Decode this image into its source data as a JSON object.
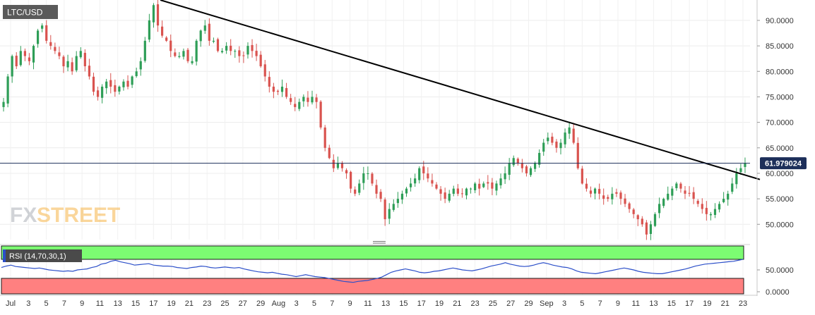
{
  "symbol_label": "LTC/USD",
  "watermark": {
    "fx": "FX",
    "street": "STREET"
  },
  "price_axis": {
    "ticks": [
      "90.0000",
      "85.0000",
      "80.0000",
      "75.0000",
      "70.0000",
      "65.0000",
      "60.0000",
      "55.0000",
      "50.0000"
    ],
    "current_price_label": "61.979024"
  },
  "rsi_panel": {
    "label": "RSI (14,70,30,1)",
    "ticks": [
      "50.0000",
      "0.0000"
    ]
  },
  "x_axis": {
    "labels": [
      "Jul",
      "3",
      "5",
      "7",
      "9",
      "11",
      "13",
      "15",
      "17",
      "19",
      "21",
      "23",
      "25",
      "27",
      "29",
      "Aug",
      "3",
      "5",
      "7",
      "9",
      "11",
      "13",
      "15",
      "17",
      "19",
      "21",
      "23",
      "25",
      "27",
      "29",
      "Sep",
      "3",
      "5",
      "7",
      "9",
      "11",
      "13",
      "15",
      "17",
      "19",
      "21",
      "23"
    ]
  },
  "colors": {
    "up": "#2e9e57",
    "down": "#d9534f",
    "trendline": "#000000",
    "price_line": "#1d2f5a",
    "rsi_line": "#2c4fc9",
    "rsi_overbought_zone": "#7cfc72",
    "rsi_oversold_zone": "#ff8080"
  },
  "chart_data": [
    {
      "type": "candlestick",
      "ylim": [
        47,
        94
      ],
      "current_price": 61.979024,
      "trendline": {
        "from": {
          "date": "Jul 18",
          "value": 94
        },
        "to": {
          "date": "Sep 24",
          "value": 61
        }
      },
      "closes": [
        74,
        79,
        83,
        81,
        84,
        83,
        82,
        85,
        88,
        89,
        86,
        85,
        84,
        83,
        81,
        82,
        80,
        83,
        84,
        81,
        79,
        76,
        75,
        77,
        78,
        77,
        76,
        77,
        78,
        77,
        79,
        80,
        82,
        86,
        90,
        93,
        89,
        87,
        86,
        84,
        83,
        83,
        84,
        82,
        82,
        86,
        88,
        89,
        86,
        86,
        84,
        84,
        85,
        84,
        84,
        83,
        83,
        85,
        84,
        83,
        81,
        79,
        77,
        76,
        76,
        77,
        75,
        74,
        73,
        74,
        75,
        74,
        75,
        74,
        69,
        65,
        63,
        61,
        62,
        61,
        60,
        57,
        56,
        58,
        60,
        60,
        58,
        56,
        55,
        51,
        53,
        54,
        55,
        56,
        57,
        58,
        59,
        61,
        60,
        59,
        58,
        57,
        56,
        55,
        56,
        57,
        56,
        56,
        57,
        57,
        58,
        57,
        58,
        58,
        57,
        58,
        59,
        60,
        62,
        63,
        62,
        61,
        60,
        61,
        62,
        64,
        66,
        67,
        66,
        65,
        66,
        68,
        69,
        66,
        61,
        58,
        57,
        56,
        57,
        56,
        55,
        55,
        56,
        56,
        55,
        54,
        53,
        52,
        51,
        50,
        48,
        50,
        52,
        54,
        55,
        56,
        57,
        58,
        57,
        56,
        56,
        55,
        54,
        53,
        52,
        52,
        53,
        54,
        55,
        56,
        58,
        60,
        61,
        62
      ],
      "dates_range": [
        "Jul 1",
        "Sep 24"
      ]
    },
    {
      "type": "line",
      "name": "RSI (14,70,30,1)",
      "ylim": [
        0,
        100
      ],
      "overbought": 70,
      "oversold": 30,
      "values": [
        55,
        58,
        60,
        57,
        56,
        55,
        54,
        53,
        54,
        52,
        50,
        49,
        48,
        47,
        48,
        47,
        50,
        51,
        52,
        55,
        57,
        62,
        64,
        68,
        70,
        67,
        65,
        63,
        60,
        61,
        62,
        63,
        60,
        59,
        58,
        58,
        57,
        55,
        54,
        53,
        55,
        56,
        58,
        57,
        55,
        54,
        55,
        56,
        55,
        54,
        55,
        52,
        50,
        48,
        46,
        45,
        44,
        45,
        43,
        41,
        40,
        38,
        36,
        38,
        40,
        38,
        36,
        35,
        34,
        32,
        30,
        28,
        26,
        25,
        24,
        26,
        27,
        28,
        30,
        32,
        35,
        40,
        45,
        48,
        50,
        52,
        50,
        48,
        45,
        44,
        45,
        47,
        48,
        50,
        52,
        54,
        52,
        50,
        49,
        48,
        50,
        52,
        55,
        58,
        60,
        62,
        65,
        62,
        60,
        58,
        57,
        58,
        60,
        63,
        65,
        63,
        60,
        58,
        56,
        55,
        52,
        48,
        45,
        44,
        43,
        42,
        44,
        46,
        48,
        50,
        52,
        54,
        52,
        50,
        47,
        45,
        44,
        43,
        42,
        42,
        44,
        46,
        48,
        50,
        52,
        55,
        58,
        60,
        62,
        63,
        64,
        65,
        66,
        67,
        68,
        70,
        72
      ]
    }
  ]
}
